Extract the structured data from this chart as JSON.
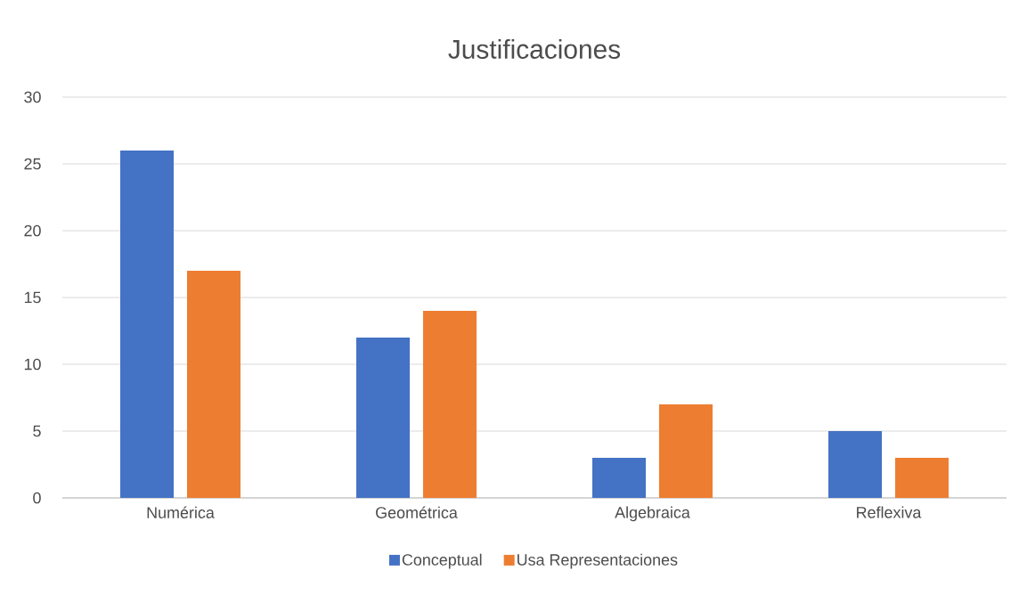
{
  "chart_data": {
    "type": "bar",
    "title": "Justificaciones",
    "categories": [
      "Numérica",
      "Geométrica",
      "Algebraica",
      "Reflexiva"
    ],
    "series": [
      {
        "name": "Conceptual",
        "color": "#4472c4",
        "values": [
          26,
          12,
          3,
          5
        ]
      },
      {
        "name": "Usa Representaciones",
        "color": "#ed7d31",
        "values": [
          17,
          14,
          7,
          3
        ]
      }
    ],
    "ylim": [
      0,
      30
    ],
    "yticks": [
      0,
      5,
      10,
      15,
      20,
      25,
      30
    ],
    "grid": "y",
    "legend": "bottom"
  }
}
